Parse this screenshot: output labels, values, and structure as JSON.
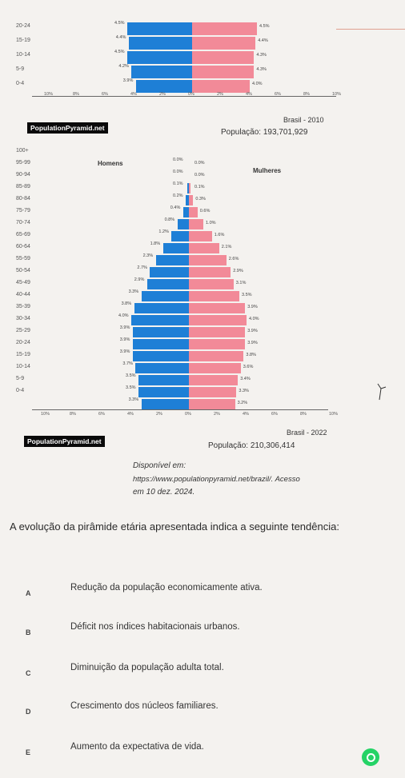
{
  "pyramid_top": {
    "region": "Brasil - 2010",
    "population": "População: 193,701,929",
    "brand": "PopulationPyramid.net",
    "rows": [
      {
        "age": "20-24",
        "male": "4.5%",
        "female": "4.5%",
        "m": 4.5,
        "f": 4.5
      },
      {
        "age": "15-19",
        "male": "4.4%",
        "female": "4.4%",
        "m": 4.4,
        "f": 4.4
      },
      {
        "age": "10-14",
        "male": "4.5%",
        "female": "4.3%",
        "m": 4.5,
        "f": 4.3
      },
      {
        "age": "5-9",
        "male": "4.2%",
        "female": "4.3%",
        "m": 4.2,
        "f": 4.3
      },
      {
        "age": "0-4",
        "male": "3.9%",
        "female": "4.0%",
        "m": 3.9,
        "f": 4.0
      }
    ],
    "xticks": [
      "10%",
      "8%",
      "6%",
      "4%",
      "2%",
      "0%",
      "2%",
      "4%",
      "6%",
      "8%",
      "10%"
    ]
  },
  "pyramid_bottom": {
    "region": "Brasil - 2022",
    "population": "População: 210,306,414",
    "brand": "PopulationPyramid.net",
    "men_label": "Homens",
    "women_label": "Mulheres",
    "rows": [
      {
        "age": "100+",
        "male": "",
        "female": "",
        "m": 0,
        "f": 0
      },
      {
        "age": "95-99",
        "male": "0.0%",
        "female": "0.0%",
        "m": 0.0,
        "f": 0.0
      },
      {
        "age": "90-94",
        "male": "0.0%",
        "female": "0.0%",
        "m": 0.0,
        "f": 0.0
      },
      {
        "age": "85-89",
        "male": "0.1%",
        "female": "0.1%",
        "m": 0.1,
        "f": 0.1
      },
      {
        "age": "80-84",
        "male": "0.2%",
        "female": "0.3%",
        "m": 0.2,
        "f": 0.3
      },
      {
        "age": "75-79",
        "male": "0.4%",
        "female": "0.6%",
        "m": 0.4,
        "f": 0.6
      },
      {
        "age": "70-74",
        "male": "0.8%",
        "female": "1.0%",
        "m": 0.8,
        "f": 1.0
      },
      {
        "age": "65-69",
        "male": "1.2%",
        "female": "1.6%",
        "m": 1.2,
        "f": 1.6
      },
      {
        "age": "60-64",
        "male": "1.8%",
        "female": "2.1%",
        "m": 1.8,
        "f": 2.1
      },
      {
        "age": "55-59",
        "male": "2.3%",
        "female": "2.6%",
        "m": 2.3,
        "f": 2.6
      },
      {
        "age": "50-54",
        "male": "2.7%",
        "female": "2.9%",
        "m": 2.7,
        "f": 2.9
      },
      {
        "age": "45-49",
        "male": "2.9%",
        "female": "3.1%",
        "m": 2.9,
        "f": 3.1
      },
      {
        "age": "40-44",
        "male": "3.3%",
        "female": "3.5%",
        "m": 3.3,
        "f": 3.5
      },
      {
        "age": "35-39",
        "male": "3.8%",
        "female": "3.9%",
        "m": 3.8,
        "f": 3.9
      },
      {
        "age": "30-34",
        "male": "4.0%",
        "female": "4.0%",
        "m": 4.0,
        "f": 4.0
      },
      {
        "age": "25-29",
        "male": "3.9%",
        "female": "3.9%",
        "m": 3.9,
        "f": 3.9
      },
      {
        "age": "20-24",
        "male": "3.9%",
        "female": "3.9%",
        "m": 3.9,
        "f": 3.9
      },
      {
        "age": "15-19",
        "male": "3.9%",
        "female": "3.8%",
        "m": 3.9,
        "f": 3.8
      },
      {
        "age": "10-14",
        "male": "3.7%",
        "female": "3.6%",
        "m": 3.7,
        "f": 3.6
      },
      {
        "age": "5-9",
        "male": "3.5%",
        "female": "3.4%",
        "m": 3.5,
        "f": 3.4
      },
      {
        "age": "0-4",
        "male": "3.5%",
        "female": "3.3%",
        "m": 3.5,
        "f": 3.3
      },
      {
        "age": "",
        "male": "3.3%",
        "female": "3.2%",
        "m": 3.3,
        "f": 3.2
      }
    ],
    "xticks": [
      "10%",
      "8%",
      "6%",
      "4%",
      "2%",
      "0%",
      "2%",
      "4%",
      "6%",
      "8%",
      "10%"
    ]
  },
  "source": {
    "line1": "Disponível em:",
    "line2": "https://www.populationpyramid.net/brazil/. Acesso",
    "line3": "em 10 dez. 2024."
  },
  "question": "A evolução da pirâmide etária apresentada indica a seguinte tendência:",
  "options": [
    {
      "letter": "A",
      "text": "Redução da população economicamente ativa."
    },
    {
      "letter": "B",
      "text": "Déficit nos índices habitacionais urbanos."
    },
    {
      "letter": "C",
      "text": "Diminuição da população adulta total."
    },
    {
      "letter": "D",
      "text": "Crescimento dos núcleos familiares."
    },
    {
      "letter": "E",
      "text": "Aumento da expectativa de vida."
    }
  ],
  "colors": {
    "male": "#1e7fd6",
    "female": "#f28a98"
  }
}
